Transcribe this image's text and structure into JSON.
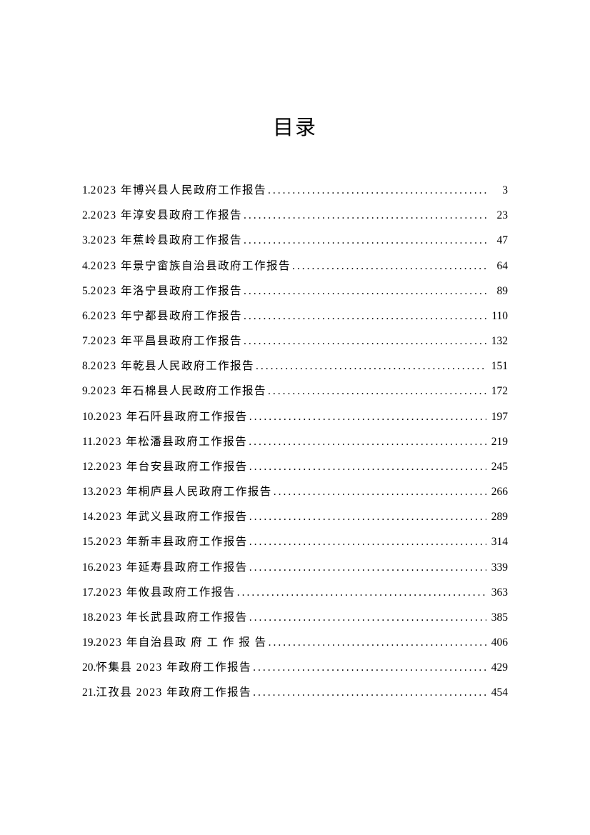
{
  "title": "目录",
  "title_fontsize": 29,
  "body_fontsize": 15.5,
  "line_height": 2.27,
  "text_color": "#000000",
  "background_color": "#ffffff",
  "entries": [
    {
      "num": "1.",
      "label": "2023 年博兴县人民政府工作报告",
      "page": "3"
    },
    {
      "num": "2.",
      "label": "2023 年淳安县政府工作报告",
      "page": "23"
    },
    {
      "num": "3.",
      "label": "2023 年蕉岭县政府工作报告",
      "page": "47"
    },
    {
      "num": "4.",
      "label": "2023 年景宁畲族自治县政府工作报告",
      "page": "64"
    },
    {
      "num": "5.",
      "label": "2023 年洛宁县政府工作报告",
      "page": "89"
    },
    {
      "num": "6.",
      "label": "2023 年宁都县政府工作报告",
      "page": "110"
    },
    {
      "num": "7.",
      "label": "2023 年平昌县政府工作报告",
      "page": "132"
    },
    {
      "num": "8.",
      "label": "2023 年乾县人民政府工作报告",
      "page": "151"
    },
    {
      "num": "9.",
      "label": "2023 年石棉县人民政府工作报告",
      "page": "172"
    },
    {
      "num": "10.",
      "label": "2023 年石阡县政府工作报告",
      "page": "197"
    },
    {
      "num": "11.",
      "label": "2023 年松潘县政府工作报告",
      "page": "219"
    },
    {
      "num": "12.",
      "label": "2023 年台安县政府工作报告",
      "page": "245"
    },
    {
      "num": "13.",
      "label": "2023 年桐庐县人民政府工作报告",
      "page": "266"
    },
    {
      "num": "14.",
      "label": "2023 年武义县政府工作报告",
      "page": "289"
    },
    {
      "num": "15.",
      "label": "2023 年新丰县政府工作报告",
      "page": "314"
    },
    {
      "num": "16.",
      "label": "2023 年延寿县政府工作报告",
      "page": "339"
    },
    {
      "num": "17.",
      "label": "2023 年攸县政府工作报告",
      "page": "363"
    },
    {
      "num": "18.",
      "label": "2023 年长武县政府工作报告",
      "page": "385"
    },
    {
      "num": "19.",
      "label": "2023 年自治县政 府 工 作 报 告",
      "page": "406"
    },
    {
      "num": "20.",
      "label": "怀集县 2023 年政府工作报告",
      "page": "429"
    },
    {
      "num": "21.",
      "label": "江孜县 2023 年政府工作报告",
      "page": "454"
    }
  ]
}
